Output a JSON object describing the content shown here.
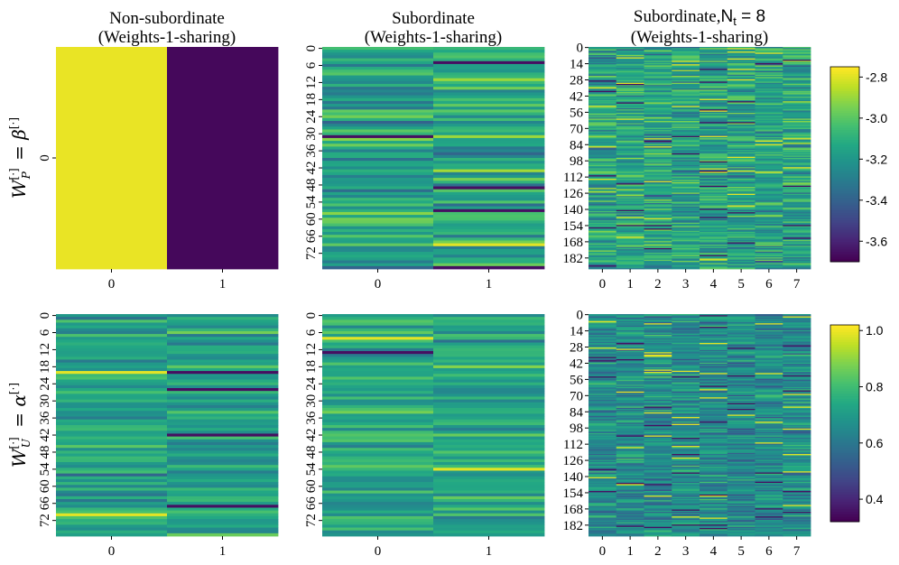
{
  "figure": {
    "row_labels": [
      {
        "base": "W",
        "sub": "P",
        "sup": "[·]",
        "rhs": "β",
        "rhs_sup": "[·]"
      },
      {
        "base": "W",
        "sub": "U",
        "sup": "[·]",
        "rhs": "α",
        "rhs_sup": "[·]"
      }
    ]
  },
  "chart_data": [
    {
      "type": "heatmap",
      "title_line1": "Non-subordinate",
      "title_line2": "(Weights-1-sharing)",
      "columns": [
        "0",
        "1"
      ],
      "yticks": [
        "0"
      ],
      "rows": 1,
      "values": [
        [
          -2.78,
          -3.68
        ]
      ],
      "colorbar": "top"
    },
    {
      "type": "heatmap",
      "title_line1": "Subordinate",
      "title_line2": "(Weights-1-sharing)",
      "columns": [
        "0",
        "1"
      ],
      "yticks": [
        "0",
        "6",
        "12",
        "18",
        "24",
        "30",
        "36",
        "42",
        "48",
        "54",
        "60",
        "66",
        "72"
      ],
      "rows": 78,
      "value_range": [
        -3.7,
        -2.75
      ],
      "colorbar": "top"
    },
    {
      "type": "heatmap",
      "title_line1": "Subordinate,",
      "title_math": "N",
      "title_math_sub": "t",
      "title_math_rest": " = 8",
      "title_line2": "(Weights-1-sharing)",
      "columns": [
        "0",
        "1",
        "2",
        "3",
        "4",
        "5",
        "6",
        "7"
      ],
      "yticks": [
        "0",
        "14",
        "28",
        "42",
        "56",
        "70",
        "84",
        "98",
        "112",
        "126",
        "140",
        "154",
        "168",
        "182"
      ],
      "rows": 192,
      "value_range": [
        -3.7,
        -2.75
      ],
      "colorbar": "top"
    },
    {
      "type": "heatmap",
      "columns": [
        "0",
        "1"
      ],
      "yticks": [
        "0",
        "6",
        "12",
        "18",
        "24",
        "30",
        "36",
        "42",
        "48",
        "54",
        "60",
        "66",
        "72"
      ],
      "rows": 78,
      "value_range": [
        0.32,
        1.02
      ],
      "colorbar": "bottom"
    },
    {
      "type": "heatmap",
      "columns": [
        "0",
        "1"
      ],
      "yticks": [
        "0",
        "6",
        "12",
        "18",
        "24",
        "30",
        "36",
        "42",
        "48",
        "54",
        "60",
        "66",
        "72"
      ],
      "rows": 78,
      "value_range": [
        0.32,
        1.02
      ],
      "colorbar": "bottom"
    },
    {
      "type": "heatmap",
      "columns": [
        "0",
        "1",
        "2",
        "3",
        "4",
        "5",
        "6",
        "7"
      ],
      "yticks": [
        "0",
        "14",
        "28",
        "42",
        "56",
        "70",
        "84",
        "98",
        "112",
        "126",
        "140",
        "154",
        "168",
        "182"
      ],
      "rows": 192,
      "value_range": [
        0.32,
        1.02
      ],
      "colorbar": "bottom"
    }
  ],
  "colorbars": {
    "top": {
      "min": -3.7,
      "max": -2.75,
      "ticks": [
        "-2.8",
        "-3.0",
        "-3.2",
        "-3.4",
        "-3.6"
      ],
      "tick_values": [
        -2.8,
        -3.0,
        -3.2,
        -3.4,
        -3.6
      ]
    },
    "bottom": {
      "min": 0.32,
      "max": 1.02,
      "ticks": [
        "1.0",
        "0.8",
        "0.6",
        "0.4"
      ],
      "tick_values": [
        1.0,
        0.8,
        0.6,
        0.4
      ]
    }
  },
  "colormap": "viridis"
}
